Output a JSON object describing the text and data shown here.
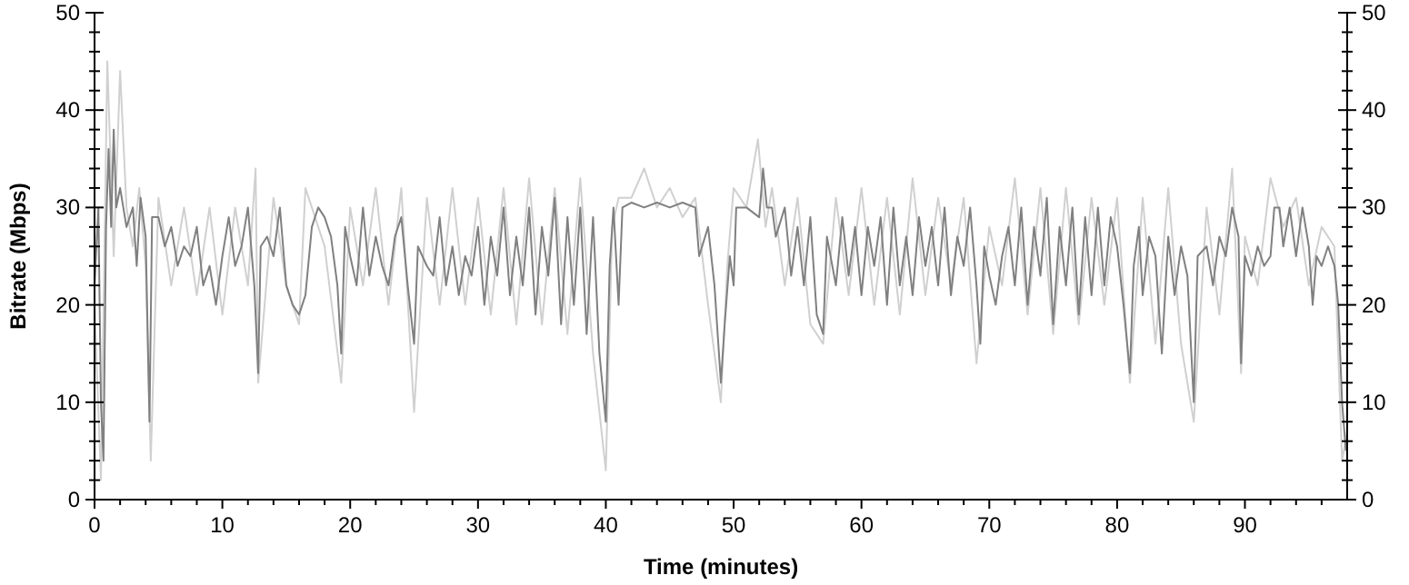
{
  "chart_data": {
    "type": "line",
    "xlabel": "Time (minutes)",
    "ylabel": "Bitrate (Mbps)",
    "xlim": [
      0,
      98
    ],
    "xticks": [
      0,
      {
        "value": 2,
        "label": null
      },
      {
        "value": 4,
        "label": null
      },
      {
        "value": 6,
        "label": null
      },
      {
        "value": 8,
        "label": null
      },
      10,
      {
        "value": 12,
        "label": null
      },
      {
        "value": 14,
        "label": null
      },
      {
        "value": 16,
        "label": null
      },
      {
        "value": 18,
        "label": null
      },
      20,
      {
        "value": 22,
        "label": null
      },
      {
        "value": 24,
        "label": null
      },
      {
        "value": 26,
        "label": null
      },
      {
        "value": 28,
        "label": null
      },
      30,
      {
        "value": 32,
        "label": null
      },
      {
        "value": 34,
        "label": null
      },
      {
        "value": 36,
        "label": null
      },
      {
        "value": 38,
        "label": null
      },
      40,
      {
        "value": 42,
        "label": null
      },
      {
        "value": 44,
        "label": null
      },
      {
        "value": 46,
        "label": null
      },
      {
        "value": 48,
        "label": null
      },
      50,
      {
        "value": 52,
        "label": null
      },
      {
        "value": 54,
        "label": null
      },
      {
        "value": 56,
        "label": null
      },
      {
        "value": 58,
        "label": null
      },
      60,
      {
        "value": 62,
        "label": null
      },
      {
        "value": 64,
        "label": null
      },
      {
        "value": 66,
        "label": null
      },
      {
        "value": 68,
        "label": null
      },
      70,
      {
        "value": 72,
        "label": null
      },
      {
        "value": 74,
        "label": null
      },
      {
        "value": 76,
        "label": null
      },
      {
        "value": 78,
        "label": null
      },
      80,
      {
        "value": 82,
        "label": null
      },
      {
        "value": 84,
        "label": null
      },
      {
        "value": 86,
        "label": null
      },
      {
        "value": 88,
        "label": null
      },
      90,
      {
        "value": 92,
        "label": null
      },
      {
        "value": 94,
        "label": null
      },
      {
        "value": 96,
        "label": null
      }
    ],
    "ylim": [
      0,
      50
    ],
    "yticks": [
      0,
      {
        "value": 2,
        "label": null
      },
      {
        "value": 4,
        "label": null
      },
      {
        "value": 6,
        "label": null
      },
      {
        "value": 8,
        "label": null
      },
      10,
      {
        "value": 12,
        "label": null
      },
      {
        "value": 14,
        "label": null
      },
      {
        "value": 16,
        "label": null
      },
      {
        "value": 18,
        "label": null
      },
      20,
      {
        "value": 22,
        "label": null
      },
      {
        "value": 24,
        "label": null
      },
      {
        "value": 26,
        "label": null
      },
      {
        "value": 28,
        "label": null
      },
      30,
      {
        "value": 32,
        "label": null
      },
      {
        "value": 34,
        "label": null
      },
      {
        "value": 36,
        "label": null
      },
      {
        "value": 38,
        "label": null
      },
      40,
      {
        "value": 42,
        "label": null
      },
      {
        "value": 44,
        "label": null
      },
      {
        "value": 46,
        "label": null
      },
      {
        "value": 48,
        "label": null
      },
      50
    ],
    "y2lim": [
      0,
      50
    ],
    "y2ticks": [
      0,
      {
        "value": 2,
        "label": null
      },
      {
        "value": 4,
        "label": null
      },
      {
        "value": 6,
        "label": null
      },
      {
        "value": 8,
        "label": null
      },
      10,
      {
        "value": 12,
        "label": null
      },
      {
        "value": 14,
        "label": null
      },
      {
        "value": 16,
        "label": null
      },
      {
        "value": 18,
        "label": null
      },
      20,
      {
        "value": 22,
        "label": null
      },
      {
        "value": 24,
        "label": null
      },
      {
        "value": 26,
        "label": null
      },
      {
        "value": 28,
        "label": null
      },
      30,
      {
        "value": 32,
        "label": null
      },
      {
        "value": 34,
        "label": null
      },
      {
        "value": 36,
        "label": null
      },
      {
        "value": 38,
        "label": null
      },
      40,
      {
        "value": 42,
        "label": null
      },
      {
        "value": 44,
        "label": null
      },
      {
        "value": 46,
        "label": null
      },
      {
        "value": 48,
        "label": null
      },
      50
    ],
    "grid": false,
    "line_style": "solid",
    "marker": "none",
    "series": [
      {
        "color": "#d0d0d0",
        "x": [
          0,
          0.5,
          1,
          1.5,
          2,
          2.5,
          3,
          3.5,
          4,
          4.4,
          5,
          6,
          7,
          8,
          9,
          10,
          11,
          12,
          12.6,
          12.8,
          14,
          15,
          16,
          16.5,
          17,
          18,
          19.3,
          20,
          21,
          22,
          23,
          24,
          25,
          26,
          27,
          28,
          29,
          30,
          31,
          32,
          33,
          34,
          35,
          36,
          37,
          38,
          39,
          40,
          40.5,
          41,
          42,
          43,
          44,
          45,
          46,
          47,
          48,
          49,
          49.5,
          50,
          51,
          51.9,
          52.5,
          53,
          54,
          55,
          56,
          57,
          58,
          59,
          60,
          61,
          62,
          63,
          64,
          65,
          66,
          67,
          68,
          69,
          70,
          71,
          72,
          73,
          74,
          75,
          76,
          77,
          78,
          79,
          80,
          81,
          82,
          83,
          84,
          85,
          86,
          87,
          88,
          89,
          89.7,
          90,
          91,
          92,
          93,
          94,
          95,
          96,
          97,
          97.6,
          98
        ],
        "values": [
          20,
          2,
          45,
          25,
          44,
          30,
          26,
          32,
          24,
          4,
          31,
          22,
          30,
          21,
          30,
          19,
          30,
          22,
          34,
          12,
          31,
          22,
          18,
          32,
          30,
          26,
          12,
          30,
          22,
          32,
          20,
          32,
          9,
          31,
          20,
          32,
          20,
          31,
          19,
          32,
          18,
          33,
          18,
          32,
          17,
          33,
          15,
          3,
          28,
          31,
          31,
          34,
          30,
          32,
          29,
          31,
          20,
          10,
          24,
          32,
          30,
          37,
          28,
          32,
          22,
          31,
          18,
          16,
          31,
          21,
          32,
          20,
          31,
          19,
          33,
          21,
          31,
          22,
          31,
          14,
          28,
          22,
          33,
          19,
          32,
          17,
          32,
          18,
          31,
          20,
          31,
          12,
          31,
          16,
          32,
          16,
          8,
          30,
          19,
          34,
          13,
          27,
          22,
          33,
          28,
          31,
          22,
          28,
          26,
          4,
          7
        ]
      },
      {
        "color": "#808080",
        "x": [
          0,
          0.3,
          0.5,
          0.7,
          0.9,
          1.1,
          1.3,
          1.5,
          1.7,
          2,
          2.5,
          3,
          3.3,
          3.6,
          4,
          4.3,
          4.5,
          5,
          5.5,
          6,
          6.5,
          7,
          7.5,
          8,
          8.5,
          9,
          9.5,
          10,
          10.5,
          11,
          11.5,
          12,
          12.5,
          12.8,
          13,
          13.5,
          14,
          14.5,
          15,
          15.5,
          16,
          16.5,
          17,
          17.5,
          18,
          18.5,
          19,
          19.3,
          19.6,
          20,
          20.5,
          21,
          21.5,
          22,
          22.5,
          23,
          23.5,
          24,
          24.5,
          25,
          25.3,
          26,
          26.5,
          27,
          27.5,
          28,
          28.5,
          29,
          29.5,
          30,
          30.5,
          31,
          31.5,
          32,
          32.5,
          33,
          33.5,
          34,
          34.5,
          35,
          35.5,
          36,
          36.5,
          37,
          37.5,
          38,
          38.5,
          39,
          39.5,
          40,
          40.3,
          40.6,
          41,
          41.3,
          42,
          43,
          44,
          45,
          46,
          47,
          47.3,
          48,
          48.5,
          49,
          49.3,
          49.7,
          50,
          50.2,
          51,
          52,
          52.3,
          52.6,
          53,
          53.3,
          54,
          54.5,
          55,
          55.5,
          56,
          56.5,
          57,
          57.3,
          58,
          58.5,
          59,
          59.5,
          60,
          60.5,
          61,
          61.5,
          62,
          62.5,
          63,
          63.5,
          64,
          64.5,
          65,
          65.5,
          66,
          66.5,
          67,
          67.5,
          68,
          68.5,
          69,
          69.3,
          69.6,
          70,
          70.5,
          71,
          71.5,
          72,
          72.5,
          73,
          73.5,
          74,
          74.5,
          75,
          75.5,
          76,
          76.5,
          77,
          77.5,
          78,
          78.5,
          79,
          79.5,
          80,
          80.5,
          81,
          81.3,
          81.7,
          82,
          82.5,
          83,
          83.5,
          84,
          84.5,
          85,
          85.5,
          86,
          86.3,
          87,
          87.5,
          88,
          88.5,
          89,
          89.5,
          89.7,
          90,
          90.5,
          91,
          91.5,
          92,
          92.3,
          92.7,
          93,
          93.5,
          94,
          94.5,
          95,
          95.3,
          95.6,
          96,
          96.5,
          97,
          97.3,
          97.6,
          97.9
        ],
        "values": [
          22,
          30,
          10,
          4,
          28,
          36,
          28,
          38,
          30,
          32,
          28,
          30,
          24,
          31,
          27,
          8,
          29,
          29,
          26,
          28,
          24,
          26,
          25,
          28,
          22,
          24,
          20,
          25,
          29,
          24,
          26,
          30,
          22,
          13,
          26,
          27,
          25,
          30,
          22,
          20,
          19,
          21,
          28,
          30,
          29,
          27,
          22,
          15,
          28,
          25,
          22,
          30,
          23,
          27,
          24,
          22,
          27,
          29,
          22,
          16,
          26,
          24,
          23,
          29,
          22,
          26,
          21,
          25,
          23,
          28,
          20,
          27,
          23,
          30,
          21,
          27,
          22,
          30,
          19,
          28,
          23,
          31,
          18,
          29,
          20,
          30,
          17,
          29,
          15,
          8,
          24,
          30,
          20,
          30,
          30.5,
          30,
          30.5,
          30,
          30.5,
          30,
          25,
          28,
          22,
          12,
          18,
          25,
          22,
          30,
          30,
          29,
          34,
          30,
          30,
          27,
          30,
          23,
          28,
          22,
          29,
          19,
          17,
          27,
          22,
          29,
          23,
          28,
          21,
          28,
          24,
          29,
          20,
          30,
          22,
          27,
          21,
          29,
          24,
          28,
          22,
          30,
          21,
          27,
          24,
          30,
          22,
          16,
          26,
          23,
          20,
          25,
          28,
          22,
          30,
          20,
          28,
          23,
          31,
          18,
          28,
          22,
          30,
          19,
          29,
          21,
          30,
          22,
          29,
          26,
          20,
          13,
          24,
          28,
          21,
          27,
          25,
          15,
          27,
          21,
          26,
          23,
          10,
          25,
          26,
          22,
          27,
          25,
          30,
          27,
          14,
          25,
          23,
          26,
          24,
          25,
          30,
          30,
          26,
          30,
          25,
          30,
          26,
          20,
          25,
          24,
          26,
          24,
          20,
          10,
          5
        ]
      }
    ]
  }
}
